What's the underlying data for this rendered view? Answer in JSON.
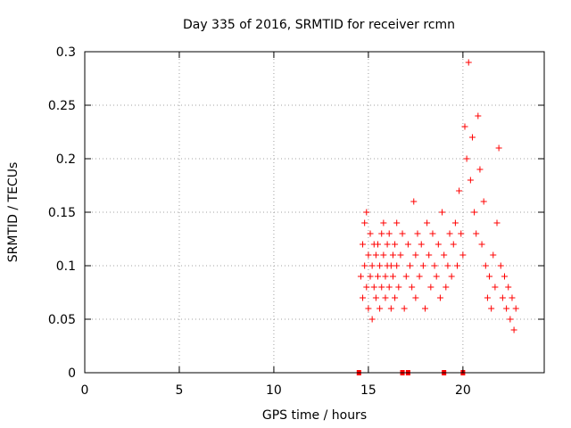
{
  "chart_data": {
    "type": "scatter",
    "title": "Day 335 of 2016, SRMTID for receiver rcmn",
    "xlabel": "GPS time / hours",
    "ylabel": "SRMTID / TECUs",
    "xlim": [
      0,
      24.3
    ],
    "ylim": [
      0,
      0.3
    ],
    "x_ticks": [
      0,
      5,
      10,
      15,
      20
    ],
    "x_tick_labels": [
      "0",
      "5",
      "10",
      "15",
      "20"
    ],
    "y_ticks": [
      0,
      0.05,
      0.1,
      0.15,
      0.2,
      0.25,
      0.3
    ],
    "y_tick_labels": [
      "0",
      "0.05",
      "0.1",
      "0.15",
      "0.2",
      "0.25",
      "0.3"
    ],
    "grid": true,
    "legend": "none",
    "series": [
      {
        "color": "#ff0000",
        "marker": "plus",
        "x": [
          14.6,
          14.7,
          14.7,
          14.8,
          14.8,
          14.9,
          14.9,
          15.0,
          15.0,
          15.1,
          15.1,
          15.2,
          15.2,
          15.3,
          15.3,
          15.4,
          15.4,
          15.5,
          15.5,
          15.6,
          15.6,
          15.7,
          15.7,
          15.8,
          15.8,
          15.9,
          15.9,
          16.0,
          16.0,
          16.1,
          16.1,
          16.2,
          16.2,
          16.3,
          16.3,
          16.4,
          16.4,
          16.5,
          16.5,
          16.6,
          16.7,
          16.8,
          16.9,
          17.0,
          17.1,
          17.2,
          17.3,
          17.4,
          17.5,
          17.5,
          17.6,
          17.7,
          17.8,
          17.9,
          18.0,
          18.1,
          18.2,
          18.3,
          18.4,
          18.5,
          18.6,
          18.7,
          18.8,
          18.9,
          19.0,
          19.1,
          19.2,
          19.3,
          19.4,
          19.5,
          19.6,
          19.7,
          19.8,
          19.9,
          20.0,
          20.1,
          20.2,
          20.3,
          20.4,
          20.5,
          20.6,
          20.7,
          20.8,
          20.9,
          21.0,
          21.1,
          21.2,
          21.3,
          21.4,
          21.5,
          21.6,
          21.7,
          21.8,
          21.9,
          22.0,
          22.1,
          22.2,
          22.3,
          22.4,
          22.5,
          22.6,
          22.7,
          22.8
        ],
        "y": [
          0.09,
          0.12,
          0.07,
          0.1,
          0.14,
          0.08,
          0.15,
          0.11,
          0.06,
          0.13,
          0.09,
          0.1,
          0.05,
          0.12,
          0.08,
          0.11,
          0.07,
          0.09,
          0.12,
          0.1,
          0.06,
          0.13,
          0.08,
          0.11,
          0.14,
          0.09,
          0.07,
          0.1,
          0.12,
          0.08,
          0.13,
          0.1,
          0.06,
          0.11,
          0.09,
          0.12,
          0.07,
          0.1,
          0.14,
          0.08,
          0.11,
          0.13,
          0.06,
          0.09,
          0.12,
          0.1,
          0.08,
          0.16,
          0.11,
          0.07,
          0.13,
          0.09,
          0.12,
          0.1,
          0.06,
          0.14,
          0.11,
          0.08,
          0.13,
          0.1,
          0.09,
          0.12,
          0.07,
          0.15,
          0.11,
          0.08,
          0.1,
          0.13,
          0.09,
          0.12,
          0.14,
          0.1,
          0.17,
          0.13,
          0.11,
          0.23,
          0.2,
          0.29,
          0.18,
          0.22,
          0.15,
          0.13,
          0.24,
          0.19,
          0.12,
          0.16,
          0.1,
          0.07,
          0.09,
          0.06,
          0.11,
          0.08,
          0.14,
          0.21,
          0.1,
          0.07,
          0.09,
          0.06,
          0.08,
          0.05,
          0.07,
          0.04,
          0.06
        ]
      },
      {
        "color": "#ff0000",
        "marker": "square",
        "x": [
          14.5,
          16.8,
          17.1,
          19.0,
          20.0
        ],
        "y": [
          0,
          0,
          0,
          0,
          0
        ]
      }
    ]
  }
}
